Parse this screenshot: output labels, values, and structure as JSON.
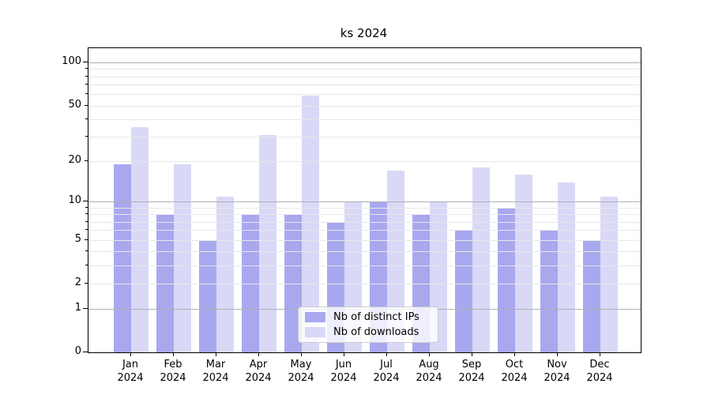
{
  "chart_data": {
    "type": "bar",
    "title": "ks 2024",
    "year_label": "2024",
    "categories": [
      "Jan",
      "Feb",
      "Mar",
      "Apr",
      "May",
      "Jun",
      "Jul",
      "Aug",
      "Sep",
      "Oct",
      "Nov",
      "Dec"
    ],
    "series": [
      {
        "name": "Nb of distinct IPs",
        "color": "#a8a8ef",
        "values": [
          19,
          8,
          5,
          8,
          8,
          7,
          10,
          8,
          6,
          9,
          6,
          5
        ]
      },
      {
        "name": "Nb of downloads",
        "color": "#d9d9f7",
        "values": [
          35,
          19,
          11,
          31,
          59,
          10,
          17,
          10,
          18,
          16,
          14,
          11
        ]
      }
    ],
    "yaxis": {
      "scale": "log1p",
      "ylim": [
        0,
        126
      ],
      "tick_values": [
        0,
        1,
        2,
        5,
        10,
        20,
        50,
        100
      ],
      "tick_labels": [
        "0",
        "1",
        "2",
        "5",
        "10",
        "20",
        "50",
        "100"
      ],
      "major_values": [
        1,
        10,
        100
      ],
      "minor_values": [
        2,
        3,
        4,
        5,
        6,
        7,
        8,
        9,
        20,
        30,
        40,
        50,
        60,
        70,
        80,
        90
      ]
    },
    "legend": {
      "position": "lower center"
    },
    "grid": true,
    "colors": {
      "major_grid": "#b0b0b0",
      "minor_grid": "#e7e7e7",
      "spine": "#000000",
      "legend_border": "#cccccc"
    }
  }
}
